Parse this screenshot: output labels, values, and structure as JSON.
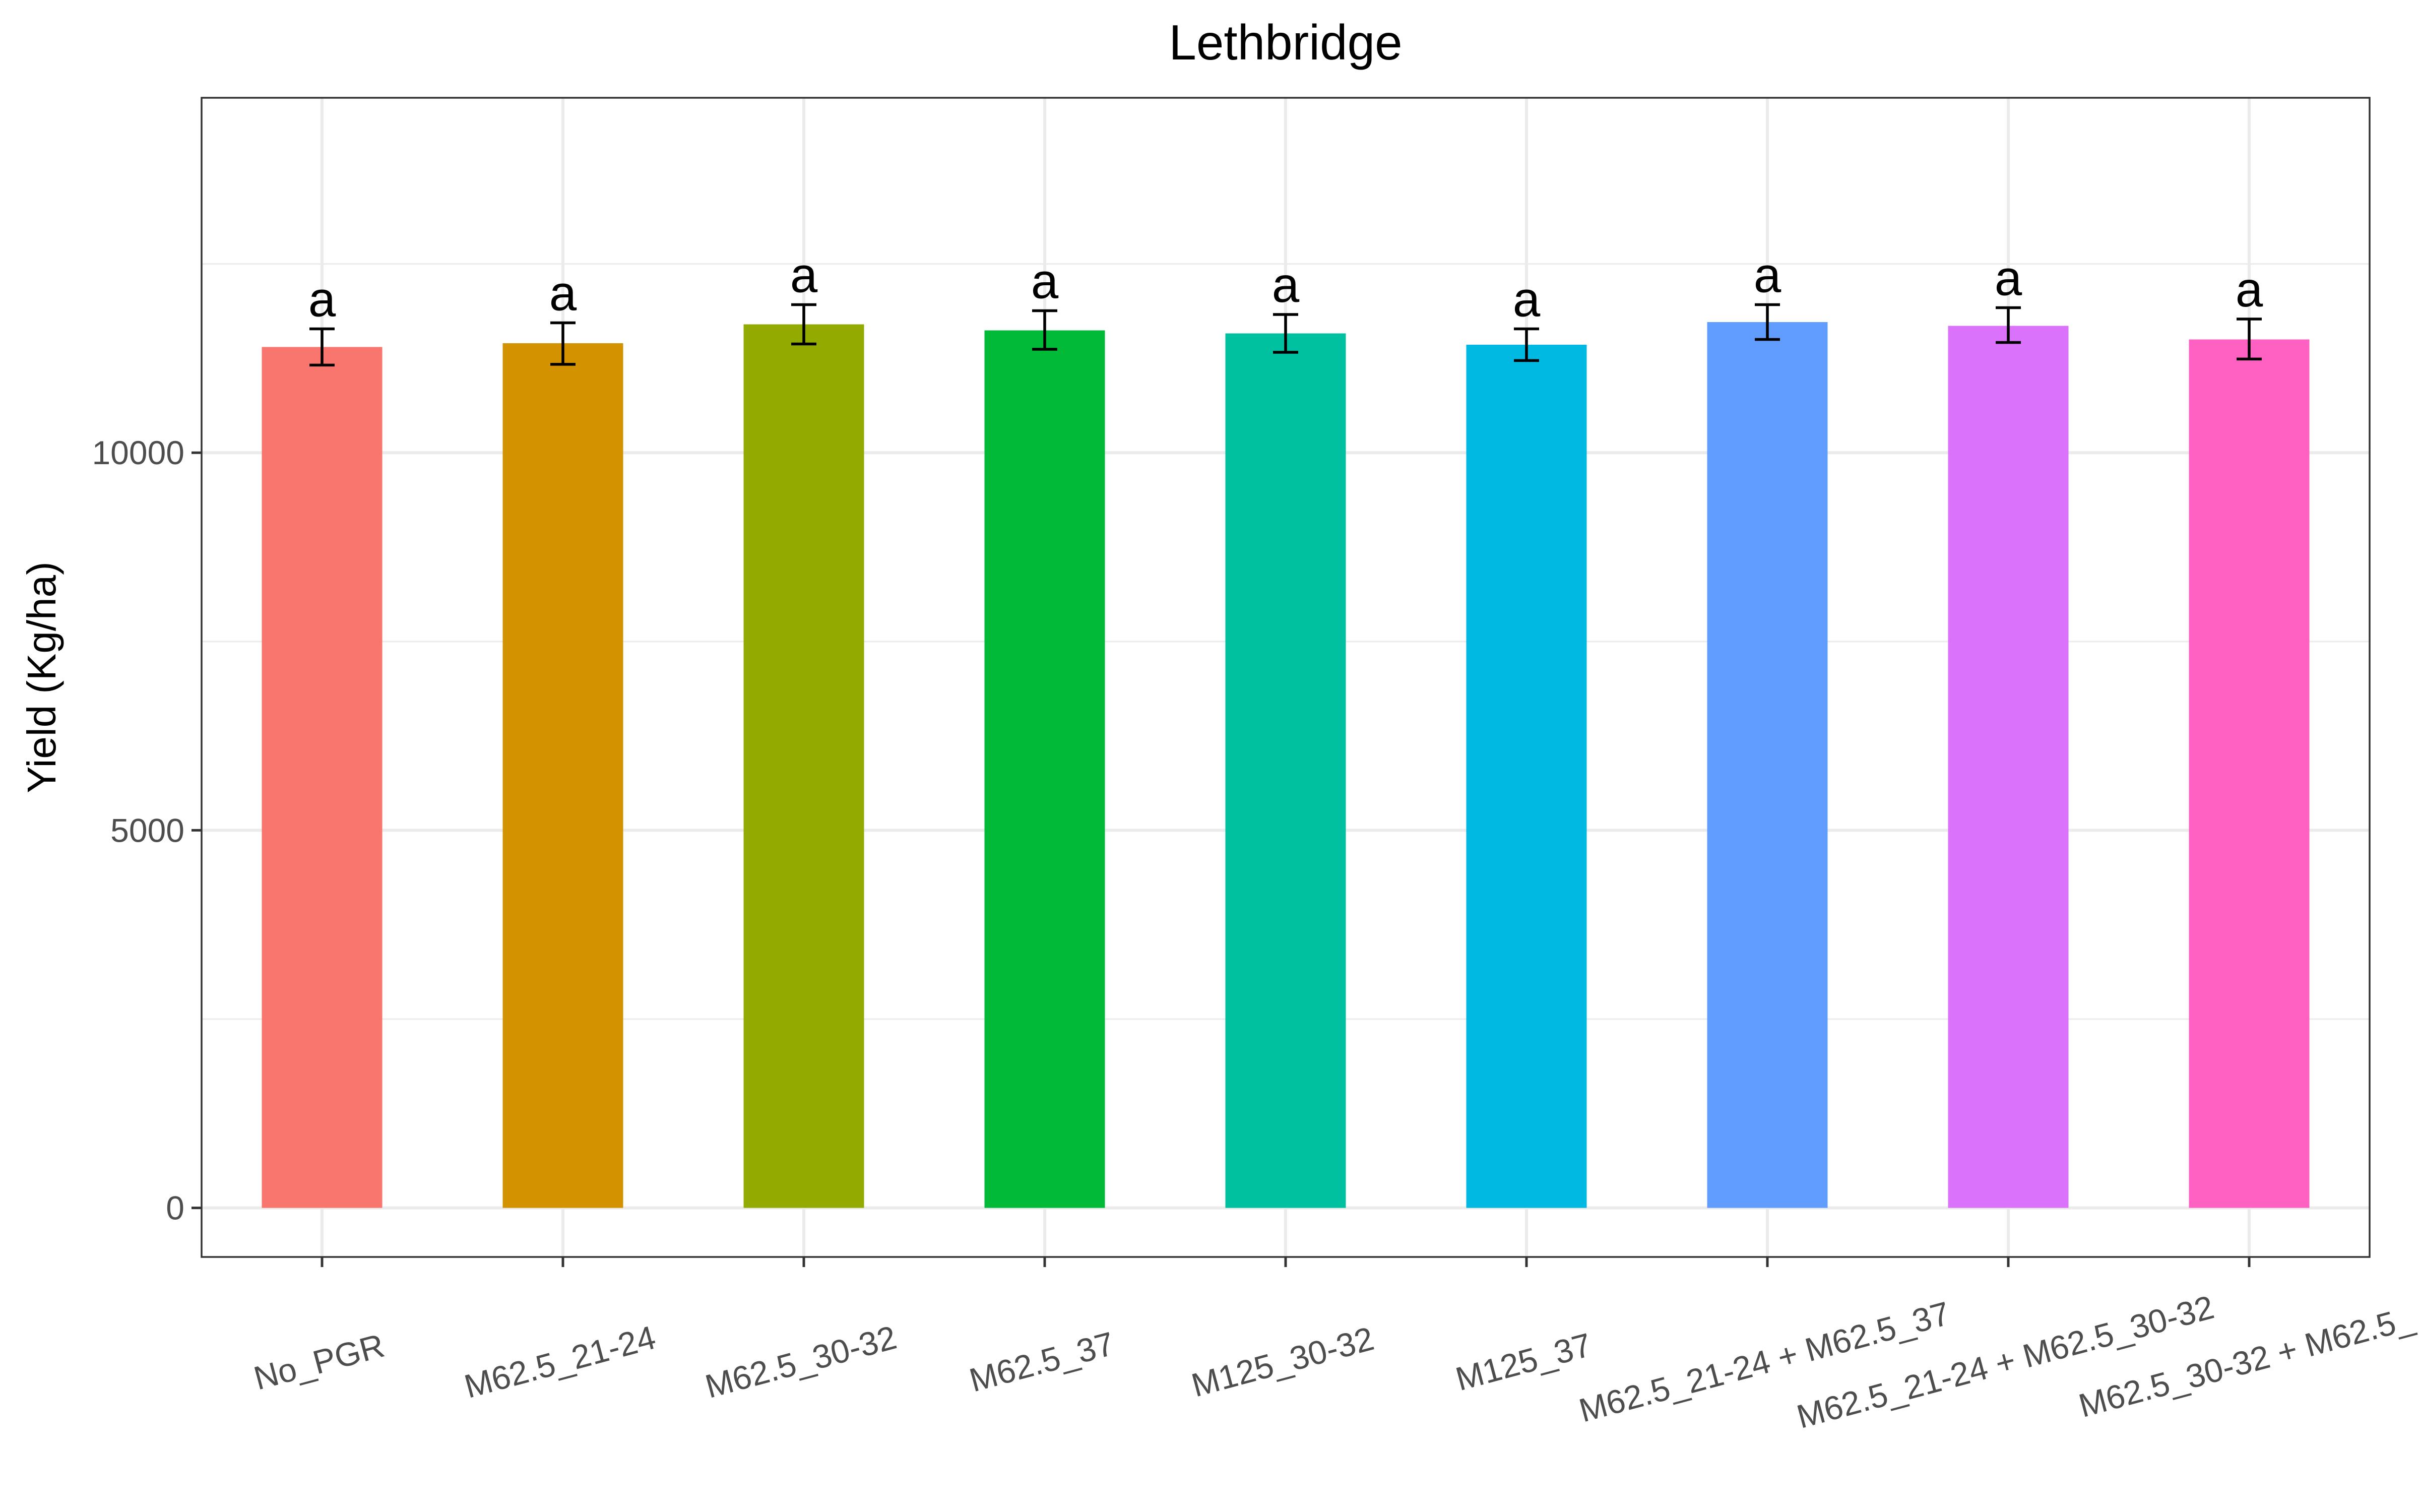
{
  "chart_data": {
    "type": "bar",
    "title": "Lethbridge",
    "xlabel": "",
    "ylabel": "Yield (Kg/ha)",
    "ylim": [
      -650,
      14700
    ],
    "y_ticks": [
      0,
      5000,
      10000
    ],
    "y_tick_labels": [
      "0",
      "5000",
      "10000"
    ],
    "grid": true,
    "legend": "none",
    "categories": [
      "No_PGR",
      "M62.5_21-24",
      "M62.5_30-32",
      "M62.5_37",
      "M125_30-32",
      "M125_37",
      "M62.5_21-24 + M62.5_37",
      "M62.5_21-24 + M62.5_30-32",
      "M62.5_30-32 + M62.5_"
    ],
    "values": [
      11400,
      11450,
      11700,
      11620,
      11580,
      11430,
      11730,
      11680,
      11500
    ],
    "error_low": [
      11160,
      11170,
      11440,
      11370,
      11330,
      11220,
      11500,
      11460,
      11240
    ],
    "error_high": [
      11640,
      11720,
      11960,
      11880,
      11830,
      11640,
      11960,
      11920,
      11770
    ],
    "labels": [
      "a",
      "a",
      "a",
      "a",
      "a",
      "a",
      "a",
      "a",
      "a"
    ],
    "colors": [
      "#F8766D",
      "#D39200",
      "#93AA00",
      "#00BA38",
      "#00C19F",
      "#00B9E3",
      "#619CFF",
      "#DB72FB",
      "#FF61C3"
    ]
  }
}
